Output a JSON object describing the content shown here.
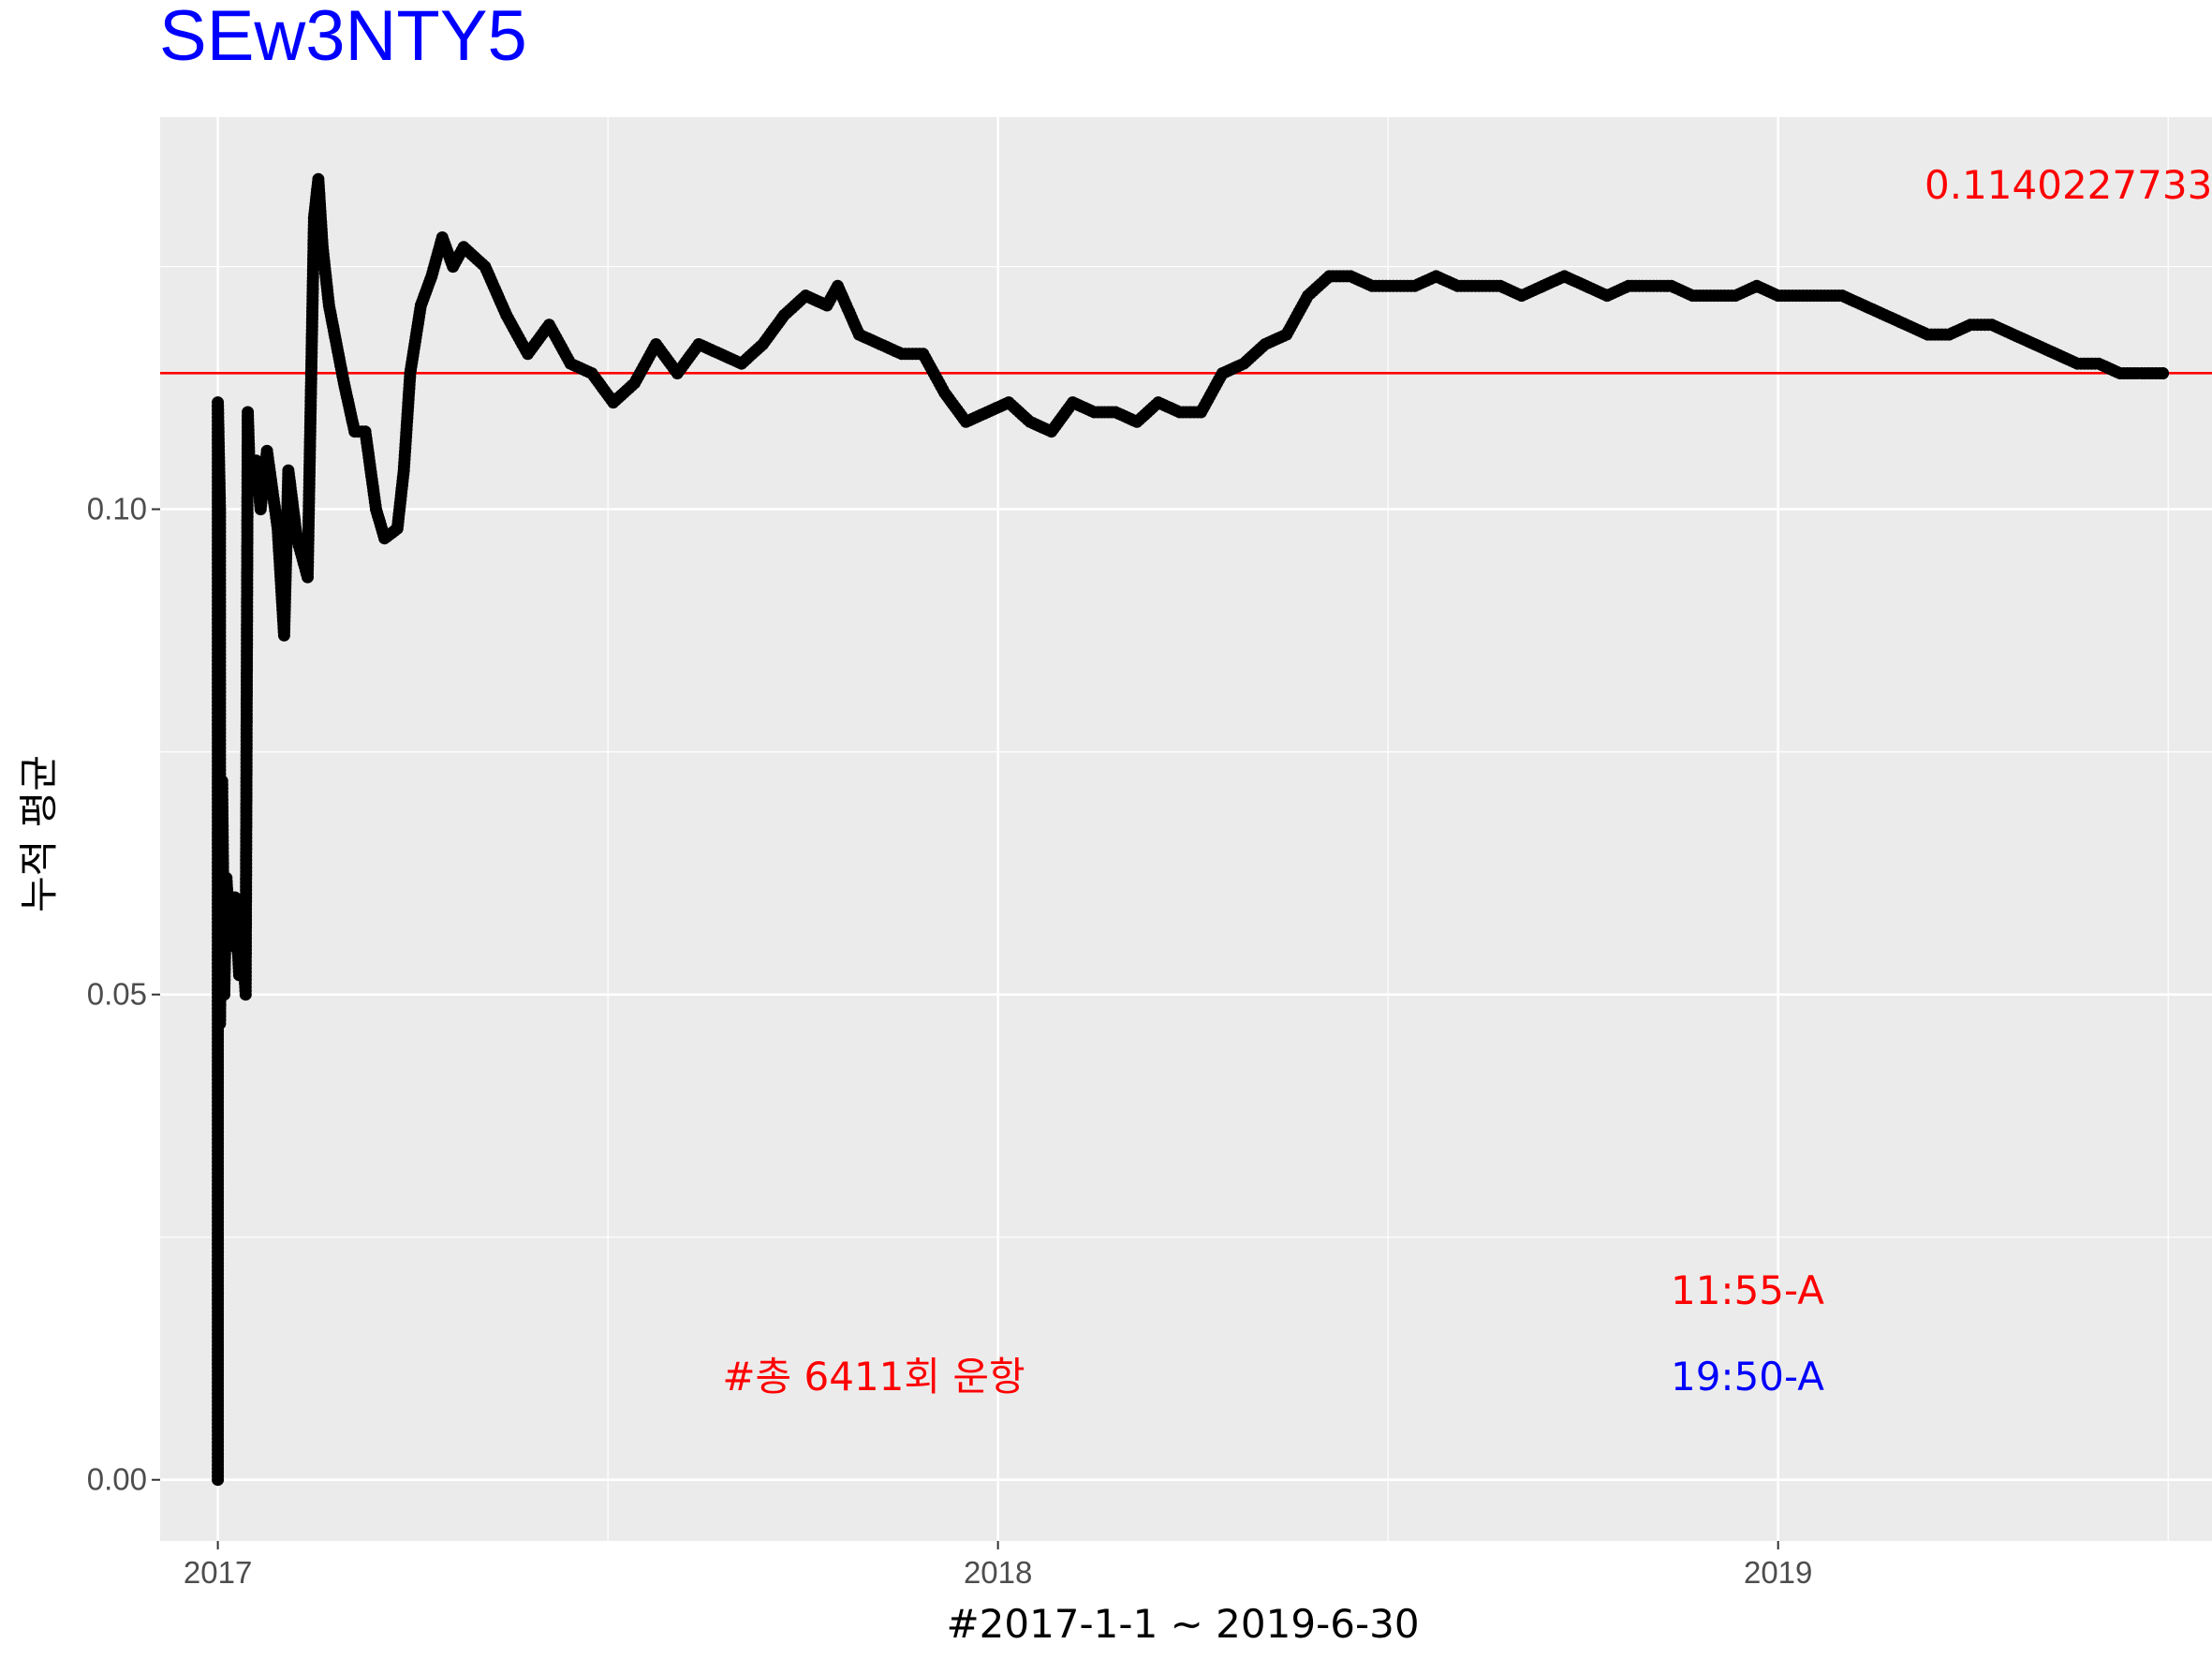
{
  "chart_data": {
    "type": "line",
    "title": "SEw3NTY5",
    "xlabel": "#2017-1-1 ~ 2019-6-30",
    "ylabel": "누적 평균",
    "x_tick_labels": [
      "2017",
      "2018",
      "2019"
    ],
    "y_tick_labels": [
      "0.00",
      "0.05",
      "0.10"
    ],
    "y_ticks": [
      0.0,
      0.05,
      0.1
    ],
    "xlim": [
      "2016-12-05",
      "2019-07-23"
    ],
    "ylim": [
      -0.0063,
      0.1404
    ],
    "grid": true,
    "hline": {
      "value": 0.1140227733,
      "color": "#ff0000"
    },
    "annotations": {
      "mean_value": "0.1140227733",
      "total_flights": "#총 6411회 운항",
      "time_red": "11:55-A",
      "time_blue": "19:50-A"
    },
    "series": [
      {
        "color": "#000000",
        "points": [
          [
            "2017-01-01",
            0.0
          ],
          [
            "2017-01-01",
            0.111
          ],
          [
            "2017-01-02",
            0.1
          ],
          [
            "2017-01-02",
            0.047
          ],
          [
            "2017-01-03",
            0.072
          ],
          [
            "2017-01-04",
            0.05
          ],
          [
            "2017-01-05",
            0.062
          ],
          [
            "2017-01-07",
            0.055
          ],
          [
            "2017-01-09",
            0.06
          ],
          [
            "2017-01-11",
            0.052
          ],
          [
            "2017-01-12",
            0.058
          ],
          [
            "2017-01-14",
            0.05
          ],
          [
            "2017-01-15",
            0.11
          ],
          [
            "2017-01-16",
            0.103
          ],
          [
            "2017-01-19",
            0.105
          ],
          [
            "2017-01-21",
            0.1
          ],
          [
            "2017-01-24",
            0.106
          ],
          [
            "2017-01-29",
            0.098
          ],
          [
            "2017-02-01",
            0.087
          ],
          [
            "2017-02-03",
            0.104
          ],
          [
            "2017-02-07",
            0.097
          ],
          [
            "2017-02-12",
            0.093
          ],
          [
            "2017-02-15",
            0.13
          ],
          [
            "2017-02-17",
            0.134
          ],
          [
            "2017-02-19",
            0.127
          ],
          [
            "2017-02-22",
            0.121
          ],
          [
            "2017-03-01",
            0.113
          ],
          [
            "2017-03-06",
            0.108
          ],
          [
            "2017-03-11",
            0.108
          ],
          [
            "2017-03-16",
            0.1
          ],
          [
            "2017-03-20",
            0.097
          ],
          [
            "2017-03-26",
            0.098
          ],
          [
            "2017-03-29",
            0.104
          ],
          [
            "2017-04-01",
            0.114
          ],
          [
            "2017-04-06",
            0.121
          ],
          [
            "2017-04-11",
            0.124
          ],
          [
            "2017-04-16",
            0.128
          ],
          [
            "2017-04-21",
            0.125
          ],
          [
            "2017-04-26",
            0.127
          ],
          [
            "2017-05-06",
            0.125
          ],
          [
            "2017-05-16",
            0.12
          ],
          [
            "2017-05-26",
            0.116
          ],
          [
            "2017-06-05",
            0.119
          ],
          [
            "2017-06-15",
            0.115
          ],
          [
            "2017-06-25",
            0.114
          ],
          [
            "2017-07-05",
            0.111
          ],
          [
            "2017-07-15",
            0.113
          ],
          [
            "2017-07-25",
            0.117
          ],
          [
            "2017-08-04",
            0.114
          ],
          [
            "2017-08-14",
            0.117
          ],
          [
            "2017-08-24",
            0.116
          ],
          [
            "2017-09-03",
            0.115
          ],
          [
            "2017-09-13",
            0.117
          ],
          [
            "2017-09-23",
            0.12
          ],
          [
            "2017-10-03",
            0.122
          ],
          [
            "2017-10-13",
            0.121
          ],
          [
            "2017-10-18",
            0.123
          ],
          [
            "2017-10-28",
            0.118
          ],
          [
            "2017-11-07",
            0.117
          ],
          [
            "2017-11-17",
            0.116
          ],
          [
            "2017-11-27",
            0.116
          ],
          [
            "2017-12-07",
            0.112
          ],
          [
            "2017-12-17",
            0.109
          ],
          [
            "2017-12-27",
            0.11
          ],
          [
            "2018-01-06",
            0.111
          ],
          [
            "2018-01-16",
            0.109
          ],
          [
            "2018-01-26",
            0.108
          ],
          [
            "2018-02-05",
            0.111
          ],
          [
            "2018-02-15",
            0.11
          ],
          [
            "2018-02-25",
            0.11
          ],
          [
            "2018-03-07",
            0.109
          ],
          [
            "2018-03-17",
            0.111
          ],
          [
            "2018-03-27",
            0.11
          ],
          [
            "2018-04-06",
            0.11
          ],
          [
            "2018-04-16",
            0.114
          ],
          [
            "2018-04-26",
            0.115
          ],
          [
            "2018-05-06",
            0.117
          ],
          [
            "2018-05-16",
            0.118
          ],
          [
            "2018-05-26",
            0.122
          ],
          [
            "2018-06-05",
            0.124
          ],
          [
            "2018-06-15",
            0.124
          ],
          [
            "2018-06-25",
            0.123
          ],
          [
            "2018-07-05",
            0.123
          ],
          [
            "2018-07-15",
            0.123
          ],
          [
            "2018-07-25",
            0.124
          ],
          [
            "2018-08-04",
            0.123
          ],
          [
            "2018-08-14",
            0.123
          ],
          [
            "2018-08-24",
            0.123
          ],
          [
            "2018-09-03",
            0.122
          ],
          [
            "2018-09-13",
            0.123
          ],
          [
            "2018-09-23",
            0.124
          ],
          [
            "2018-10-03",
            0.123
          ],
          [
            "2018-10-13",
            0.122
          ],
          [
            "2018-10-23",
            0.123
          ],
          [
            "2018-11-02",
            0.123
          ],
          [
            "2018-11-12",
            0.123
          ],
          [
            "2018-11-22",
            0.122
          ],
          [
            "2018-12-02",
            0.122
          ],
          [
            "2018-12-12",
            0.122
          ],
          [
            "2018-12-22",
            0.123
          ],
          [
            "2019-01-01",
            0.122
          ],
          [
            "2019-01-11",
            0.122
          ],
          [
            "2019-01-21",
            0.122
          ],
          [
            "2019-01-31",
            0.122
          ],
          [
            "2019-02-10",
            0.121
          ],
          [
            "2019-02-20",
            0.12
          ],
          [
            "2019-03-02",
            0.119
          ],
          [
            "2019-03-12",
            0.118
          ],
          [
            "2019-03-22",
            0.118
          ],
          [
            "2019-04-01",
            0.119
          ],
          [
            "2019-04-11",
            0.119
          ],
          [
            "2019-04-21",
            0.118
          ],
          [
            "2019-05-01",
            0.117
          ],
          [
            "2019-05-11",
            0.116
          ],
          [
            "2019-05-21",
            0.115
          ],
          [
            "2019-05-31",
            0.115
          ],
          [
            "2019-06-10",
            0.114
          ],
          [
            "2019-06-20",
            0.114
          ],
          [
            "2019-06-30",
            0.114
          ]
        ]
      }
    ]
  }
}
